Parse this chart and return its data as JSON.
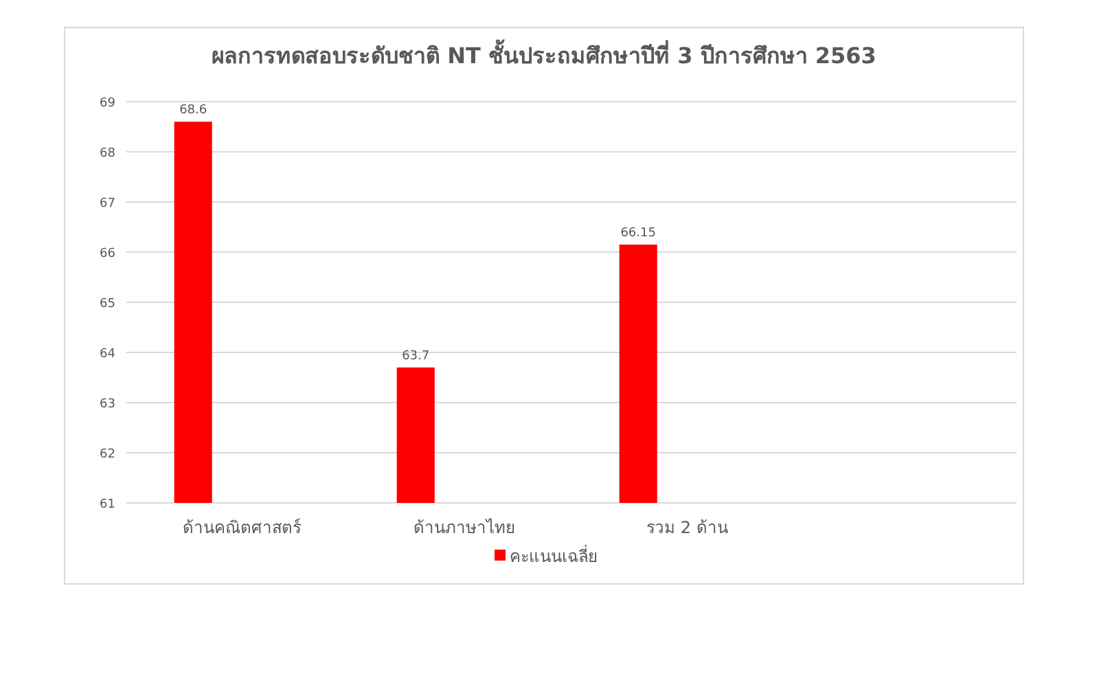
{
  "chart_data": {
    "type": "bar",
    "title": "ผลการทดสอบระดับชาติ NT ชั้นประถมศึกษาปีที่ 3  ปีการศึกษา 2563",
    "categories": [
      "ด้านคณิตศาสตร์",
      "ด้านภาษาไทย",
      "รวม 2 ด้าน",
      null
    ],
    "series": [
      {
        "name": "คะแนนเฉลี่ย",
        "color": "#ff0000",
        "values": [
          68.6,
          63.7,
          66.15,
          null
        ]
      }
    ],
    "ylim": [
      61,
      69
    ],
    "yticks": [
      61,
      62,
      63,
      64,
      65,
      66,
      67,
      68,
      69
    ],
    "grid": "y",
    "legend": "bottom",
    "data_labels": true
  }
}
